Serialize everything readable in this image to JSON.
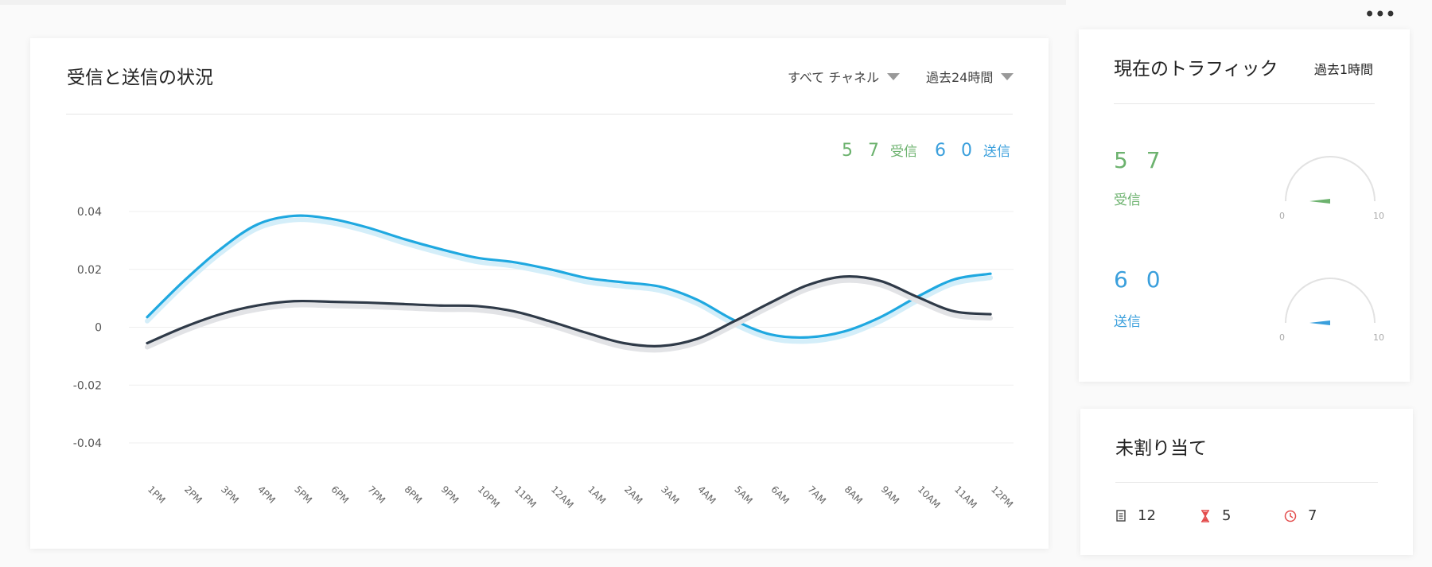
{
  "more_label": "•••",
  "chart_card": {
    "title": "受信と送信の状況",
    "channel_filter": "すべて チャネル",
    "time_filter": "過去24時間",
    "received_count": "5 7",
    "received_label": "受信",
    "sent_count": "6 0",
    "sent_label": "送信"
  },
  "chart_data": {
    "type": "line",
    "x": [
      "1PM",
      "2PM",
      "3PM",
      "4PM",
      "5PM",
      "6PM",
      "7PM",
      "8PM",
      "9PM",
      "10PM",
      "11PM",
      "12AM",
      "1AM",
      "2AM",
      "3AM",
      "4AM",
      "5AM",
      "6AM",
      "7AM",
      "8AM",
      "9AM",
      "10AM",
      "11AM",
      "12PM"
    ],
    "y_ticks": [
      "0.04",
      "0.02",
      "0",
      "-0.02",
      "-0.04"
    ],
    "ylim": [
      -0.04,
      0.04
    ],
    "grid": true,
    "series": [
      {
        "color": "#1fa8e0",
        "values": [
          0.0035,
          0.016,
          0.027,
          0.0355,
          0.0385,
          0.0375,
          0.0345,
          0.0305,
          0.027,
          0.024,
          0.0225,
          0.02,
          0.017,
          0.0155,
          0.014,
          0.0095,
          0.0025,
          -0.0025,
          -0.0035,
          -0.0015,
          0.0035,
          0.0105,
          0.0165,
          0.0185
        ]
      },
      {
        "color": "#2f3a48",
        "values": [
          -0.0055,
          0.0,
          0.0045,
          0.0075,
          0.009,
          0.0088,
          0.0085,
          0.008,
          0.0075,
          0.0073,
          0.0055,
          0.002,
          -0.002,
          -0.0055,
          -0.0065,
          -0.004,
          0.002,
          0.0085,
          0.0145,
          0.0175,
          0.016,
          0.0105,
          0.0055,
          0.0045
        ]
      }
    ]
  },
  "traffic_card": {
    "title": "現在のトラフィック",
    "period": "過去1時間",
    "received_count": "5 7",
    "received_label": "受信",
    "sent_count": "6 0",
    "sent_label": "送信",
    "gauge_min": "0",
    "gauge_max": "10",
    "colors": {
      "received": "#6cb26e",
      "sent": "#3a9fdc"
    }
  },
  "unassigned_card": {
    "title": "未割り当て",
    "items": [
      {
        "icon": "document-icon",
        "value": "12"
      },
      {
        "icon": "hourglass-icon",
        "value": "5"
      },
      {
        "icon": "clock-icon",
        "value": "7"
      }
    ]
  }
}
